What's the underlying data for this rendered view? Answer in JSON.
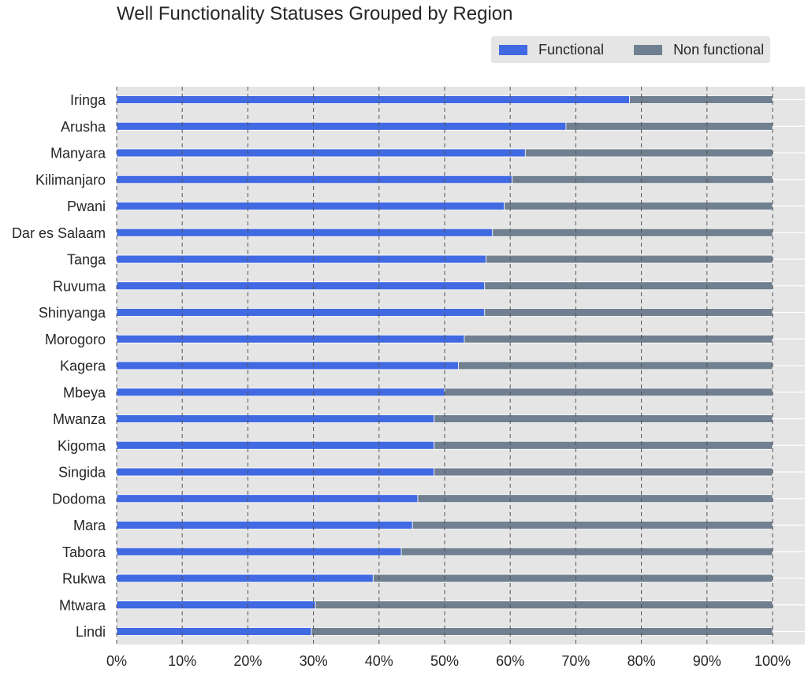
{
  "chart_data": {
    "type": "bar",
    "orientation": "horizontal",
    "stacked": true,
    "title": "Well Functionality Statuses Grouped by Region",
    "xlabel": "",
    "ylabel": "",
    "xlim": [
      0,
      100
    ],
    "x_ticks": [
      "0%",
      "10%",
      "20%",
      "30%",
      "40%",
      "50%",
      "60%",
      "70%",
      "80%",
      "90%",
      "100%"
    ],
    "legend_position": "top-right",
    "grid": "vertical dashed",
    "categories": [
      "Iringa",
      "Arusha",
      "Manyara",
      "Kilimanjaro",
      "Pwani",
      "Dar es Salaam",
      "Tanga",
      "Ruvuma",
      "Shinyanga",
      "Morogoro",
      "Kagera",
      "Mbeya",
      "Mwanza",
      "Kigoma",
      "Singida",
      "Dodoma",
      "Mara",
      "Tabora",
      "Rukwa",
      "Mtwara",
      "Lindi"
    ],
    "series": [
      {
        "name": "Functional",
        "color": "#4169e1",
        "values": [
          78.2,
          68.5,
          62.3,
          60.3,
          59.1,
          57.3,
          56.3,
          56.1,
          56.1,
          53.0,
          52.1,
          50.0,
          48.4,
          48.4,
          48.4,
          45.9,
          45.1,
          43.4,
          39.1,
          30.3,
          29.7
        ]
      },
      {
        "name": "Non functional",
        "color": "#708090",
        "values": [
          21.8,
          31.5,
          37.7,
          39.7,
          40.9,
          42.7,
          43.7,
          43.9,
          43.9,
          47.0,
          47.9,
          50.0,
          51.6,
          51.6,
          51.6,
          54.1,
          54.9,
          56.6,
          60.9,
          69.7,
          70.3
        ]
      }
    ]
  }
}
